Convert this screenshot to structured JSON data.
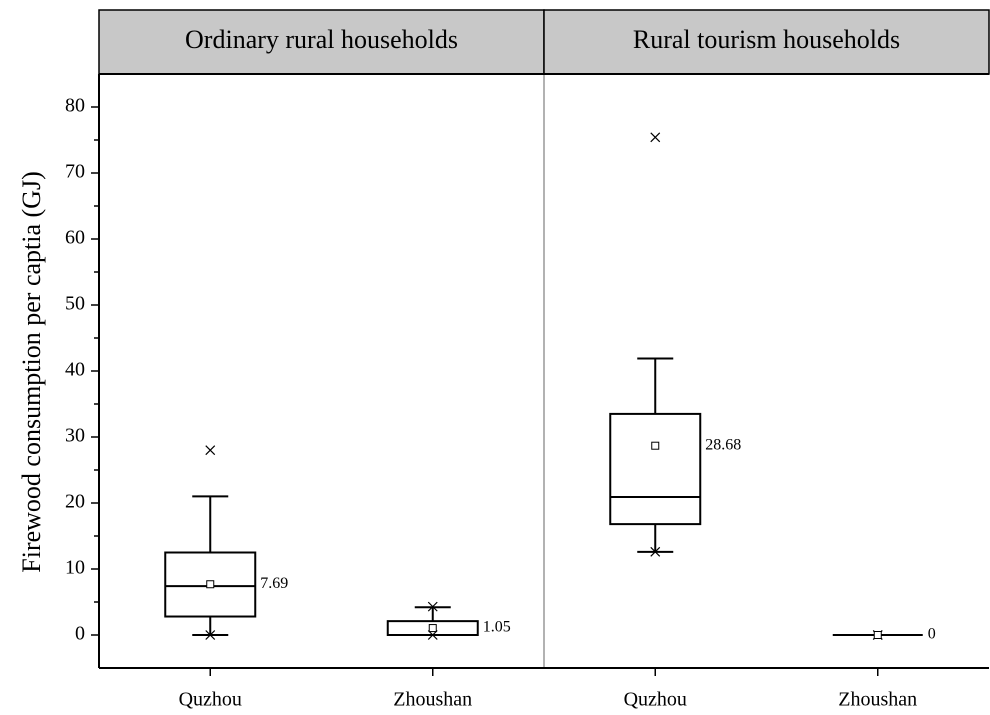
{
  "chart_data": {
    "type": "box",
    "ylabel": "Firewood consumption per captia (GJ)",
    "ylim": [
      -5,
      85
    ],
    "yticks": [
      0,
      10,
      20,
      30,
      40,
      50,
      60,
      70,
      80
    ],
    "yminorticks": [
      5,
      15,
      25,
      35,
      45,
      55,
      65,
      75
    ],
    "color": "#000000",
    "header_color": "#c8c8c8",
    "panels": [
      {
        "title": "Ordinary rural households",
        "categories": [
          "Quzhou",
          "Zhoushan"
        ],
        "boxes": [
          {
            "whislo": 0,
            "q1": 2.8,
            "med": 7.4,
            "q3": 12.5,
            "whishi": 21,
            "mean": 7.69,
            "mean_label": "7.69",
            "min": 0,
            "max": 28
          },
          {
            "whislo": 0,
            "q1": 0,
            "med": 0,
            "q3": 2.1,
            "whishi": 4.2,
            "mean": 1.05,
            "mean_label": "1.05",
            "min": 0,
            "max": 4.3
          }
        ]
      },
      {
        "title": "Rural tourism households",
        "categories": [
          "Quzhou",
          "Zhoushan"
        ],
        "boxes": [
          {
            "whislo": 12.6,
            "q1": 16.8,
            "med": 20.9,
            "q3": 33.5,
            "whishi": 41.9,
            "mean": 28.68,
            "mean_label": "28.68",
            "min": 12.6,
            "max": 75.4
          },
          {
            "whislo": 0,
            "q1": 0,
            "med": 0,
            "q3": 0,
            "whishi": 0,
            "mean": 0,
            "mean_label": "0",
            "min": 0,
            "max": 0
          }
        ]
      }
    ]
  }
}
